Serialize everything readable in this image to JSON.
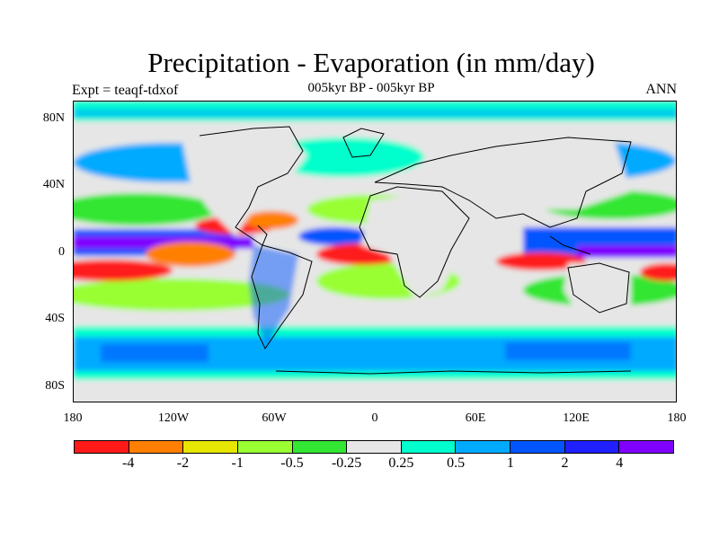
{
  "header": {
    "title": "Precipitation - Evaporation (in mm/day)",
    "subtitle": "005kyr BP - 005kyr BP",
    "left_label": "Expt = teaqf-tdxof",
    "right_label": "ANN"
  },
  "map": {
    "y_ticks": [
      "80N",
      "40N",
      "0",
      "40S",
      "80S"
    ],
    "x_ticks": [
      "180",
      "120W",
      "60W",
      "0",
      "60E",
      "120E",
      "180"
    ]
  },
  "colorbar": {
    "colors": [
      "#ff1a1a",
      "#ff8000",
      "#e6e600",
      "#99ff33",
      "#33e633",
      "#e6e6e6",
      "#00ffcc",
      "#00aaff",
      "#0055ff",
      "#2020ff",
      "#8000ff"
    ],
    "labels": [
      "-4",
      "-2",
      "-1",
      "-0.5",
      "-0.25",
      "0.25",
      "0.5",
      "1",
      "2",
      "4"
    ]
  }
}
